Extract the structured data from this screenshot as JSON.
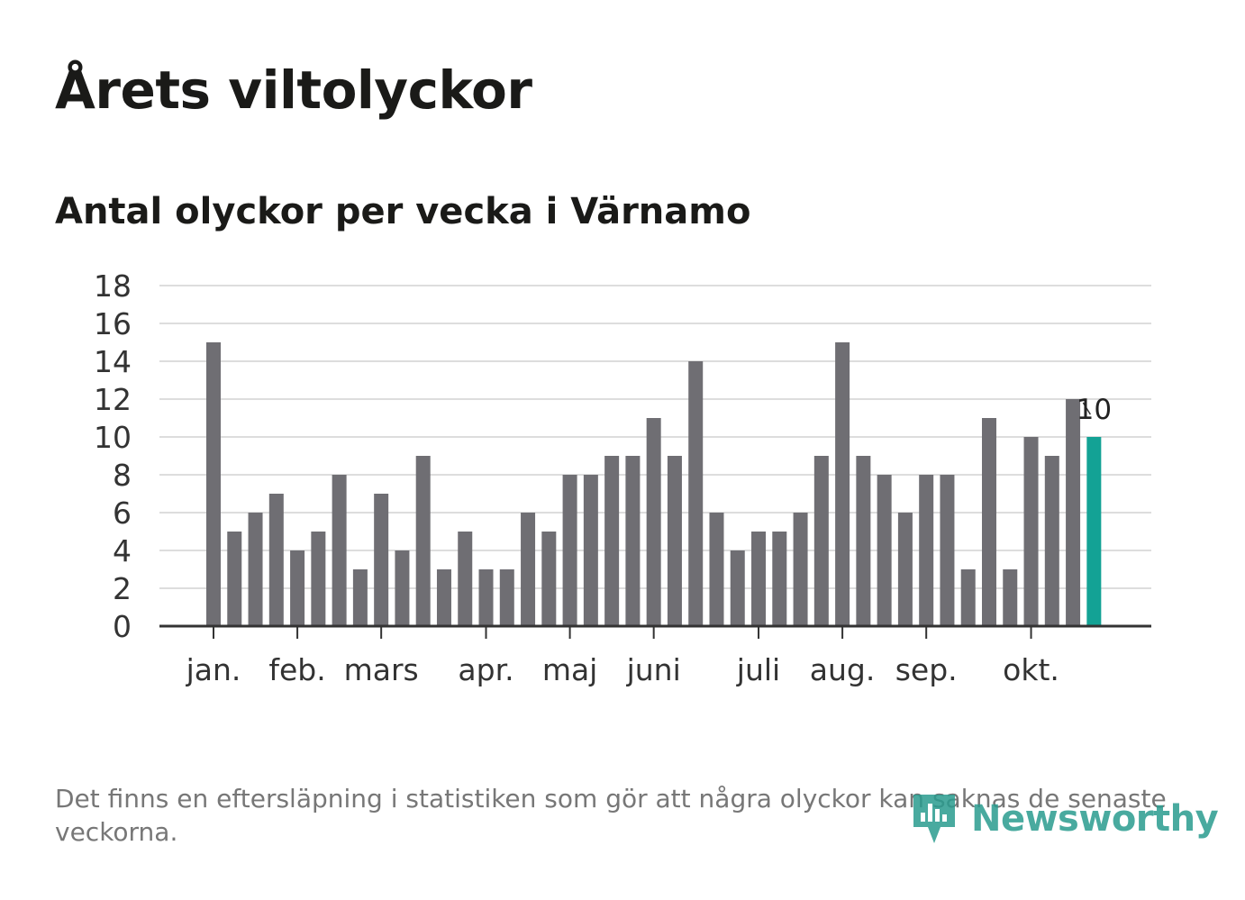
{
  "title": "Årets viltolyckor",
  "subtitle": "Antal olyckor per vecka i Värnamo",
  "footnote": "Det finns en eftersläpning i statistiken som gör att några olyckor kan saknas de senaste veckorna.",
  "logo": {
    "text": "Newsworthy",
    "icon": "newsworthy-logo-icon"
  },
  "colors": {
    "bar": "#6f6e73",
    "highlight": "#13a295",
    "grid": "#dddddd",
    "axis": "#333333",
    "brand": "#2a9c8f"
  },
  "chart_data": {
    "type": "bar",
    "title": "Antal olyckor per vecka i Värnamo",
    "xlabel": "",
    "ylabel": "",
    "ylim": [
      0,
      18
    ],
    "yticks": [
      0,
      2,
      4,
      6,
      8,
      10,
      12,
      14,
      16,
      18
    ],
    "grid": true,
    "values": [
      15,
      5,
      6,
      7,
      4,
      5,
      8,
      3,
      7,
      4,
      9,
      3,
      5,
      3,
      3,
      6,
      5,
      8,
      8,
      9,
      9,
      11,
      9,
      14,
      6,
      4,
      5,
      5,
      6,
      9,
      15,
      9,
      8,
      6,
      8,
      8,
      3,
      11,
      3,
      10,
      9,
      12,
      10
    ],
    "highlight_index": 42,
    "highlight_label": "10",
    "month_labels": [
      {
        "label": "jan.",
        "bar_index": 0
      },
      {
        "label": "feb.",
        "bar_index": 4
      },
      {
        "label": "mars",
        "bar_index": 8
      },
      {
        "label": "apr.",
        "bar_index": 13
      },
      {
        "label": "maj",
        "bar_index": 17
      },
      {
        "label": "juni",
        "bar_index": 21
      },
      {
        "label": "juli",
        "bar_index": 26
      },
      {
        "label": "aug.",
        "bar_index": 30
      },
      {
        "label": "sep.",
        "bar_index": 34
      },
      {
        "label": "okt.",
        "bar_index": 39
      }
    ]
  }
}
